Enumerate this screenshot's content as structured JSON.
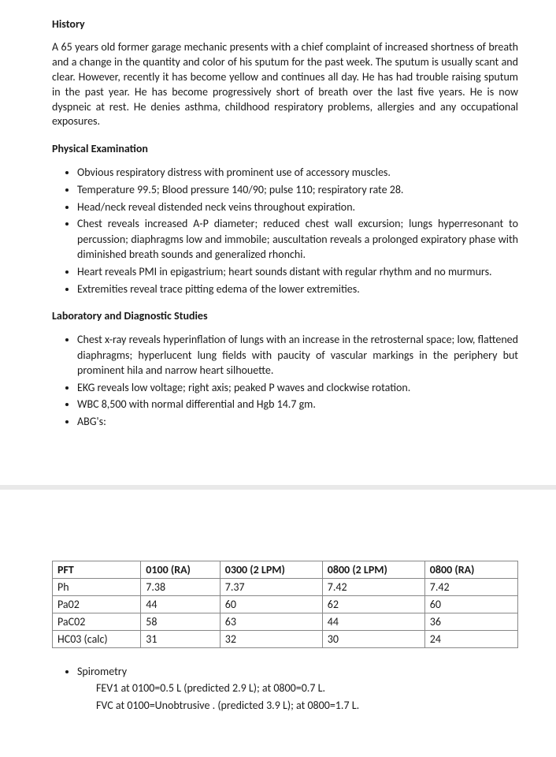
{
  "sections": {
    "history": {
      "title": "History",
      "text": "A 65 years old former garage mechanic presents with a chief complaint of increased shortness of breath and a change in the quantity and color of his sputum for the past week. The sputum is usually scant and clear. However, recently it has become yellow and continues all day. He has had trouble raising sputum in the past year. He has become progressively short of breath over the last five years. He is now dyspneic at rest. He denies asthma, childhood respiratory problems, allergies and any occupational exposures."
    },
    "pe": {
      "title": "Physical Examination",
      "items": [
        "Obvious respiratory distress with prominent use of accessory muscles.",
        "Temperature 99.5; Blood pressure 140/90; pulse 110; respiratory rate 28.",
        "Head/neck reveal distended neck veins throughout expiration.",
        "Chest reveals increased A-P diameter; reduced chest wall excursion; lungs hyperresonant to percussion; diaphragms low and immobile; auscultation reveals a prolonged expiratory phase with diminished breath sounds and generalized rhonchi.",
        "Heart reveals PMI in epigastrium; heart sounds distant with regular rhythm and no murmurs.",
        "Extremities reveal trace pitting edema of the lower extremities."
      ]
    },
    "labs": {
      "title": "Laboratory and Diagnostic Studies",
      "items": [
        "Chest x-ray reveals hyperinflation of lungs with an increase in the retrosternal space; low, flattened diaphragms; hyperlucent lung fields with paucity of vascular markings in the periphery but prominent hila and narrow heart silhouette.",
        "EKG reveals low voltage; right axis; peaked P waves and clockwise rotation.",
        "WBC 8,500 with normal differential and Hgb 14.7 gm.",
        "ABG's:"
      ]
    }
  },
  "table": {
    "columns": [
      "PFT",
      "0100 (RA)",
      "0300 (2 LPM)",
      "0800 (2 LPM)",
      "0800 (RA)"
    ],
    "rows": [
      [
        "Ph",
        "7.38",
        "7.37",
        "7.42",
        "7.42"
      ],
      [
        "Pa02",
        "44",
        "60",
        "62",
        "60"
      ],
      [
        "PaC02",
        "58",
        "63",
        "44",
        "36"
      ],
      [
        "HC03 (calc)",
        "31",
        "32",
        "30",
        "24"
      ]
    ],
    "col_widths_pct": [
      19,
      17,
      22,
      22,
      20
    ],
    "border_color": "#888888",
    "font_size_pt": 10
  },
  "spirometry": {
    "head": "Spirometry",
    "line1": "FEV1 at 0100=0.5 L (predicted  2.9 L); at 0800=0.7 L.",
    "line2": "FVC at 0100=Unobtrusive . (predicted 3.9 L); at 0800=1.7 L."
  },
  "style": {
    "body_font_size_pt": 10,
    "heading_font_size_pt": 10,
    "text_color": "#1a1a1a",
    "background_color": "#ffffff",
    "separator_color": "#e9e9e9"
  }
}
